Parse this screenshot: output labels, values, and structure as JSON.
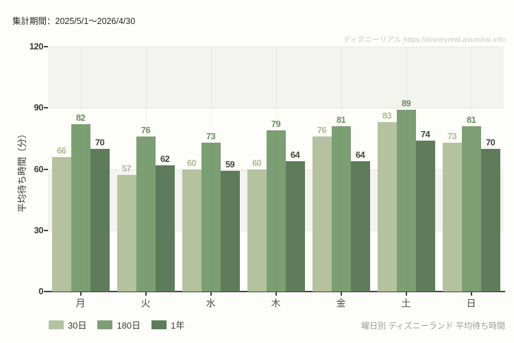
{
  "header": {
    "period_label": "集計期間：2025/5/1～2026/4/30"
  },
  "watermark": {
    "site_name": "ディズニーリアル",
    "url_text": "https://disneyreal.asumirai.info",
    "full_text": "ディズニーリアル https://disneyreal.asumirai.info"
  },
  "caption": "曜日別 ディズニーランド 平均待ち時間",
  "colors": {
    "series_30d": "#b4c2a0",
    "series_180d": "#7c9e73",
    "series_1y": "#5e7c59",
    "band_gray": "#f3f3f0",
    "axis": "#3f3f3f",
    "background": "#fdfdfa"
  },
  "chart_data": {
    "type": "bar",
    "title": "曜日別 ディズニーランド 平均待ち時間",
    "categories": [
      "月",
      "火",
      "水",
      "木",
      "金",
      "土",
      "日"
    ],
    "series": [
      {
        "name": "30日",
        "values": [
          66,
          57,
          60,
          60,
          76,
          83,
          73
        ],
        "color": "#b4c2a0",
        "label_color": "#aebc92"
      },
      {
        "name": "180日",
        "values": [
          82,
          76,
          73,
          79,
          81,
          89,
          81
        ],
        "color": "#7c9e73",
        "label_color": "#6d9063"
      },
      {
        "name": "1年",
        "values": [
          70,
          62,
          59,
          64,
          64,
          74,
          70
        ],
        "color": "#5e7c59",
        "label_color": "#3f4a3b"
      }
    ],
    "xlabel": "",
    "ylabel": "平均待ち時間（分）",
    "ylim": [
      0,
      120
    ],
    "yticks": [
      0,
      30,
      60,
      90,
      120
    ],
    "grid": "alternating-horizontal-bands-and-category-vlines",
    "legend_position": "bottom-left",
    "value_labels": "above-bars"
  }
}
